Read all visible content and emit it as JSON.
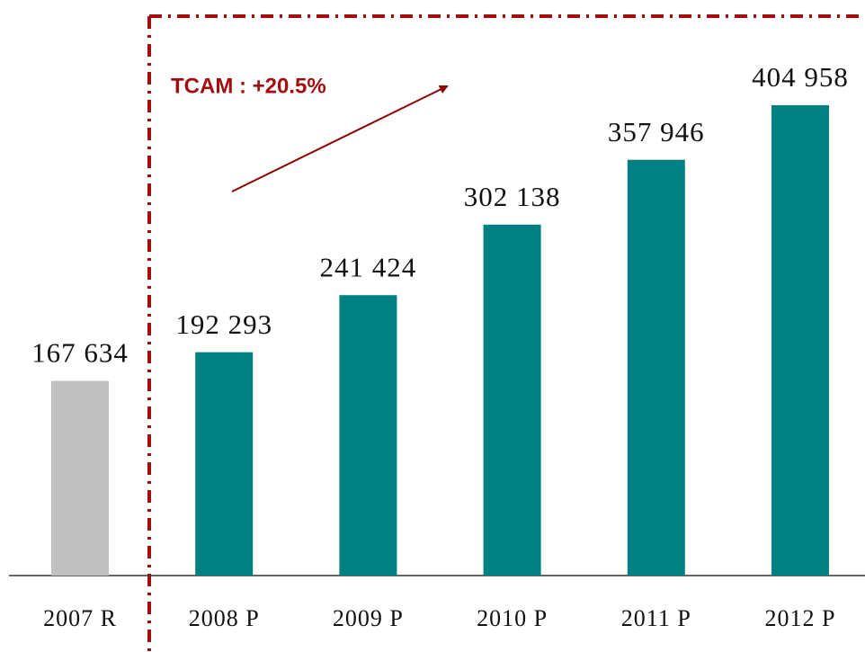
{
  "chart_data": {
    "type": "bar",
    "categories": [
      "2007 R",
      "2008 P",
      "2009 P",
      "2010 P",
      "2011 P",
      "2012 P"
    ],
    "values": [
      167634,
      192293,
      241424,
      302138,
      357946,
      404958
    ],
    "value_labels": [
      "167 634",
      "192 293",
      "241 424",
      "302 138",
      "357 946",
      "404 958"
    ],
    "colors": [
      "#c0c0c0",
      "#008080",
      "#008080",
      "#008080",
      "#008080",
      "#008080"
    ],
    "annotation": "TCAM : +20.5%"
  }
}
